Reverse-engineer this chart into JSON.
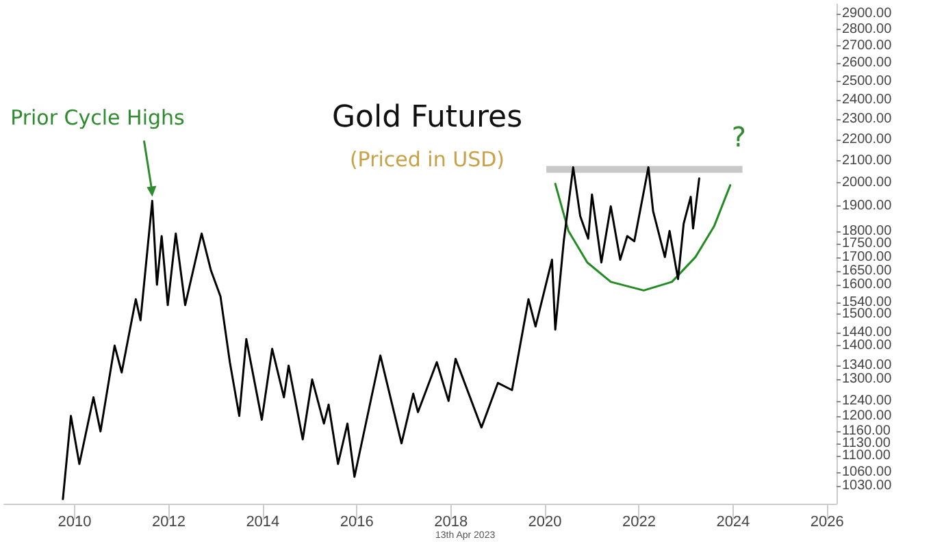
{
  "chart_data": {
    "type": "line",
    "title": "Gold Futures",
    "subtitle": "(Priced in USD)",
    "annotations": [
      {
        "text": "Prior Cycle Highs",
        "x": 2011.65,
        "y": 1923
      },
      "?",
      "13th Apr 2023"
    ],
    "xlim": [
      2008.5,
      2026.2
    ],
    "xticks": [
      2010,
      2012,
      2014,
      2016,
      2018,
      2020,
      2022,
      2024,
      2026
    ],
    "ylim": [
      990,
      2960
    ],
    "log": "y",
    "grid": false,
    "marker": "none",
    "line_style": "solid",
    "yticks": [
      {
        "value": 1030,
        "label": "1030.00"
      },
      {
        "value": 1060,
        "label": "1060.00"
      },
      {
        "value": 1100,
        "label": "1100.00"
      },
      {
        "value": 1130,
        "label": "1130.00"
      },
      {
        "value": 1160,
        "label": "1160.00"
      },
      {
        "value": 1200,
        "label": "1200.00"
      },
      {
        "value": 1240,
        "label": "1240.00"
      },
      {
        "value": 1300,
        "label": "1300.00"
      },
      {
        "value": 1340,
        "label": "1340.00"
      },
      {
        "value": 1400,
        "label": "1400.00"
      },
      {
        "value": 1440,
        "label": "1440.00"
      },
      {
        "value": 1500,
        "label": "1500.00"
      },
      {
        "value": 1540,
        "label": "1540.00"
      },
      {
        "value": 1600,
        "label": "1600.00"
      },
      {
        "value": 1650,
        "label": "1650.00"
      },
      {
        "value": 1700,
        "label": "1700.00"
      },
      {
        "value": 1750,
        "label": "1750.00"
      },
      {
        "value": 1800,
        "label": "1800.00"
      },
      {
        "value": 1900,
        "label": "1900.00"
      },
      {
        "value": 2000,
        "label": "2000.00"
      },
      {
        "value": 2100,
        "label": "2100.00"
      },
      {
        "value": 2200,
        "label": "2200.00"
      },
      {
        "value": 2300,
        "label": "2300.00"
      },
      {
        "value": 2400,
        "label": "2400.00"
      },
      {
        "value": 2500,
        "label": "2500.00"
      },
      {
        "value": 2600,
        "label": "2600.00"
      },
      {
        "value": 2700,
        "label": "2700.00"
      },
      {
        "value": 2800,
        "label": "2800.00"
      },
      {
        "value": 2900,
        "label": "2900.00"
      }
    ],
    "series": [
      {
        "color": "#000000",
        "x": [
          2009.75,
          2009.92,
          2010.1,
          2010.4,
          2010.55,
          2010.85,
          2011.0,
          2011.3,
          2011.4,
          2011.65,
          2011.75,
          2011.85,
          2011.98,
          2012.15,
          2012.35,
          2012.7,
          2012.9,
          2013.1,
          2013.3,
          2013.5,
          2013.65,
          2013.98,
          2014.2,
          2014.45,
          2014.55,
          2014.85,
          2015.05,
          2015.3,
          2015.4,
          2015.6,
          2015.8,
          2015.95,
          2016.5,
          2016.95,
          2017.2,
          2017.3,
          2017.7,
          2017.95,
          2018.1,
          2018.65,
          2019.0,
          2019.3,
          2019.65,
          2019.8,
          2020.15,
          2020.22,
          2020.4,
          2020.6,
          2020.75,
          2020.92,
          2021.0,
          2021.2,
          2021.4,
          2021.6,
          2021.75,
          2021.9,
          2022.2,
          2022.3,
          2022.55,
          2022.65,
          2022.83,
          2022.95,
          2023.1,
          2023.15,
          2023.28
        ],
        "values": [
          1000,
          1200,
          1080,
          1250,
          1160,
          1400,
          1320,
          1550,
          1480,
          1923,
          1600,
          1780,
          1530,
          1790,
          1530,
          1790,
          1650,
          1560,
          1350,
          1200,
          1420,
          1190,
          1390,
          1250,
          1340,
          1140,
          1300,
          1180,
          1230,
          1080,
          1180,
          1050,
          1370,
          1130,
          1260,
          1210,
          1350,
          1240,
          1360,
          1170,
          1290,
          1270,
          1550,
          1460,
          1690,
          1450,
          1760,
          2070,
          1860,
          1770,
          1950,
          1680,
          1900,
          1690,
          1780,
          1760,
          2070,
          1880,
          1700,
          1800,
          1620,
          1830,
          1940,
          1810,
          2020
        ]
      },
      {
        "color": "#c8c8c8",
        "x": [
          2020.03,
          2024.2
        ],
        "values": [
          2060,
          2060
        ]
      },
      {
        "color": "#228b22",
        "x": [
          2020.22,
          2020.5,
          2020.9,
          2021.4,
          2022.1,
          2022.7,
          2023.2,
          2023.6,
          2023.94
        ],
        "values": [
          1996,
          1800,
          1680,
          1610,
          1580,
          1610,
          1700,
          1820,
          1990
        ]
      }
    ]
  }
}
